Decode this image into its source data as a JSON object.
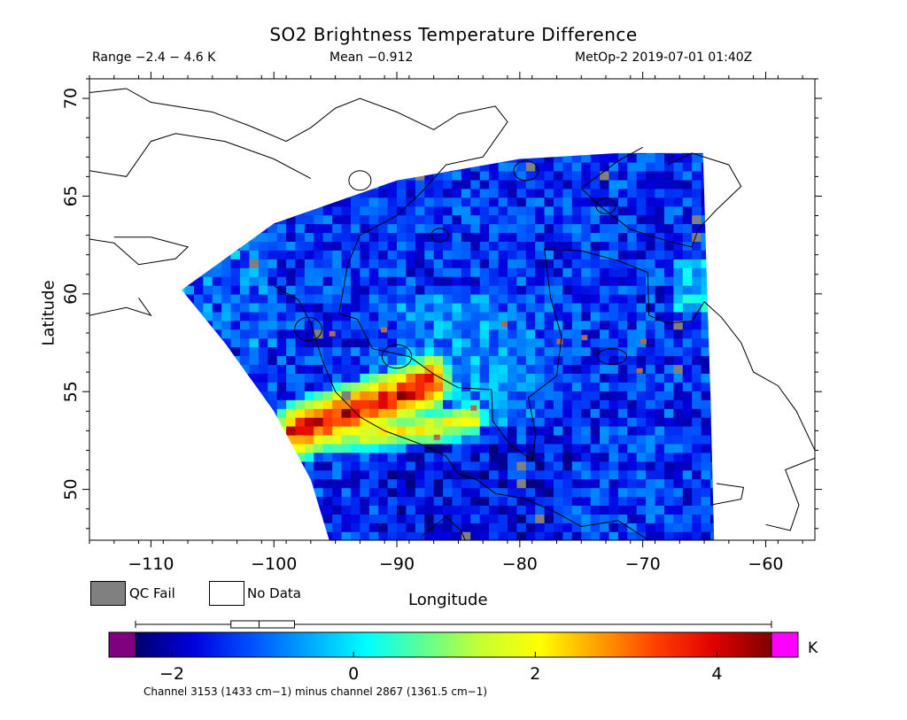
{
  "header": {
    "title": "SO2 Brightness Temperature Difference",
    "range": "Range −2.4 − 4.6 K",
    "mean": "Mean −0.912",
    "satellite_time": "MetOp-2 2019-07-01 01:40Z"
  },
  "legend": {
    "qc_fail": "QC Fail",
    "no_data": "No Data",
    "qc_fail_color": "#808080",
    "no_data_color": "#ffffff"
  },
  "colorbar": {
    "units": "K",
    "min": -2.4,
    "max": 4.6,
    "ticks": [
      -2,
      0,
      2,
      4
    ],
    "tick_labels": [
      "−2",
      "0",
      "2",
      "4"
    ],
    "under_color": "#800080",
    "over_color": "#ff00ff",
    "colormap": [
      "#00006e",
      "#0000e0",
      "#0050ff",
      "#00a8ff",
      "#00ffff",
      "#60ff90",
      "#c8ff30",
      "#ffff00",
      "#ffa000",
      "#ff4000",
      "#e00000",
      "#800000"
    ],
    "boxplot": {
      "whisker_low": -2.4,
      "q1": -1.35,
      "median": -1.04,
      "q3": -0.65,
      "whisker_high": 4.6
    },
    "note": "Channel 3153 (1433 cm−1) minus channel 2867 (1361.5 cm−1)"
  },
  "chart_data": {
    "type": "heatmap",
    "title": "SO2 Brightness Temperature Difference",
    "xlabel": "Longitude",
    "ylabel": "Latitude",
    "xlim": [
      -115,
      -56
    ],
    "ylim": [
      47.4,
      71
    ],
    "xticks": [
      -110,
      -100,
      -90,
      -80,
      -70,
      -60
    ],
    "xtick_labels": [
      "−110",
      "−100",
      "−90",
      "−80",
      "−70",
      "−60"
    ],
    "yticks": [
      50,
      55,
      60,
      65,
      70
    ],
    "ytick_labels": [
      "50",
      "55",
      "60",
      "65",
      "70"
    ],
    "swath": {
      "top_edge": [
        [
          -107.5,
          60.2
        ],
        [
          -100,
          63.6
        ],
        [
          -90,
          65.8
        ],
        [
          -80,
          66.9
        ],
        [
          -72,
          67.2
        ],
        [
          -65.1,
          67.2
        ]
      ],
      "right_edge": [
        [
          -65.1,
          67.2
        ],
        [
          -64.8,
          61
        ],
        [
          -64.5,
          55
        ],
        [
          -64.2,
          47.4
        ]
      ],
      "left_edge": [
        [
          -107.5,
          60.2
        ],
        [
          -104,
          57.5
        ],
        [
          -100,
          54
        ],
        [
          -97,
          50.5
        ],
        [
          -95.5,
          47.4
        ]
      ]
    },
    "plume": {
      "axis": [
        [
          -98.8,
          52.7
        ],
        [
          -95,
          53.6
        ],
        [
          -91,
          54.4
        ],
        [
          -87.5,
          55.3
        ]
      ],
      "peak_value": 4.5,
      "lower_branch": [
        [
          -97,
          52.5
        ],
        [
          -92,
          52.7
        ],
        [
          -88,
          52.9
        ],
        [
          -84,
          53.4
        ]
      ]
    },
    "background_mean": -0.912
  }
}
